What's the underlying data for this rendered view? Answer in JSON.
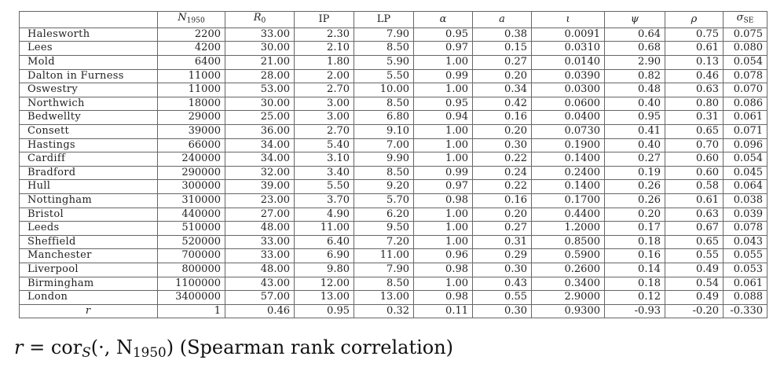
{
  "table": {
    "header_columns": [
      "",
      "N",
      "R",
      "IP",
      "LP",
      "α",
      "a",
      "ι",
      "ψ",
      "ρ",
      "σ"
    ],
    "header_subscripts": [
      "",
      "1950",
      "0",
      "",
      "",
      "",
      "",
      "",
      "",
      "",
      "SE"
    ],
    "rows": [
      [
        "Halesworth",
        "2200",
        "33.00",
        "2.30",
        "7.90",
        "0.95",
        "0.38",
        "0.0091",
        "0.64",
        "0.75",
        "0.075"
      ],
      [
        "Lees",
        "4200",
        "30.00",
        "2.10",
        "8.50",
        "0.97",
        "0.15",
        "0.0310",
        "0.68",
        "0.61",
        "0.080"
      ],
      [
        "Mold",
        "6400",
        "21.00",
        "1.80",
        "5.90",
        "1.00",
        "0.27",
        "0.0140",
        "2.90",
        "0.13",
        "0.054"
      ],
      [
        "Dalton in Furness",
        "11000",
        "28.00",
        "2.00",
        "5.50",
        "0.99",
        "0.20",
        "0.0390",
        "0.82",
        "0.46",
        "0.078"
      ],
      [
        "Oswestry",
        "11000",
        "53.00",
        "2.70",
        "10.00",
        "1.00",
        "0.34",
        "0.0300",
        "0.48",
        "0.63",
        "0.070"
      ],
      [
        "Northwich",
        "18000",
        "30.00",
        "3.00",
        "8.50",
        "0.95",
        "0.42",
        "0.0600",
        "0.40",
        "0.80",
        "0.086"
      ],
      [
        "Bedwellty",
        "29000",
        "25.00",
        "3.00",
        "6.80",
        "0.94",
        "0.16",
        "0.0400",
        "0.95",
        "0.31",
        "0.061"
      ],
      [
        "Consett",
        "39000",
        "36.00",
        "2.70",
        "9.10",
        "1.00",
        "0.20",
        "0.0730",
        "0.41",
        "0.65",
        "0.071"
      ],
      [
        "Hastings",
        "66000",
        "34.00",
        "5.40",
        "7.00",
        "1.00",
        "0.30",
        "0.1900",
        "0.40",
        "0.70",
        "0.096"
      ],
      [
        "Cardiff",
        "240000",
        "34.00",
        "3.10",
        "9.90",
        "1.00",
        "0.22",
        "0.1400",
        "0.27",
        "0.60",
        "0.054"
      ],
      [
        "Bradford",
        "290000",
        "32.00",
        "3.40",
        "8.50",
        "0.99",
        "0.24",
        "0.2400",
        "0.19",
        "0.60",
        "0.045"
      ],
      [
        "Hull",
        "300000",
        "39.00",
        "5.50",
        "9.20",
        "0.97",
        "0.22",
        "0.1400",
        "0.26",
        "0.58",
        "0.064"
      ],
      [
        "Nottingham",
        "310000",
        "23.00",
        "3.70",
        "5.70",
        "0.98",
        "0.16",
        "0.1700",
        "0.26",
        "0.61",
        "0.038"
      ],
      [
        "Bristol",
        "440000",
        "27.00",
        "4.90",
        "6.20",
        "1.00",
        "0.20",
        "0.4400",
        "0.20",
        "0.63",
        "0.039"
      ],
      [
        "Leeds",
        "510000",
        "48.00",
        "11.00",
        "9.50",
        "1.00",
        "0.27",
        "1.2000",
        "0.17",
        "0.67",
        "0.078"
      ],
      [
        "Sheffield",
        "520000",
        "33.00",
        "6.40",
        "7.20",
        "1.00",
        "0.31",
        "0.8500",
        "0.18",
        "0.65",
        "0.043"
      ],
      [
        "Manchester",
        "700000",
        "33.00",
        "6.90",
        "11.00",
        "0.96",
        "0.29",
        "0.5900",
        "0.16",
        "0.55",
        "0.055"
      ],
      [
        "Liverpool",
        "800000",
        "48.00",
        "9.80",
        "7.90",
        "0.98",
        "0.30",
        "0.2600",
        "0.14",
        "0.49",
        "0.053"
      ],
      [
        "Birmingham",
        "1100000",
        "43.00",
        "12.00",
        "8.50",
        "1.00",
        "0.43",
        "0.3400",
        "0.18",
        "0.54",
        "0.061"
      ],
      [
        "London",
        "3400000",
        "57.00",
        "13.00",
        "13.00",
        "0.98",
        "0.55",
        "2.9000",
        "0.12",
        "0.49",
        "0.088"
      ]
    ],
    "correlation_row": [
      "r",
      "1",
      "0.46",
      "0.95",
      "0.32",
      "0.11",
      "0.30",
      "0.9300",
      "-0.93",
      "-0.20",
      "-0.330"
    ]
  },
  "caption": {
    "lhs": "r",
    "eq": " = cor",
    "sub_s": "S",
    "args": "(·, N",
    "sub_n": "1950",
    "close": ")",
    "note": "(Spearman rank correlation)"
  }
}
